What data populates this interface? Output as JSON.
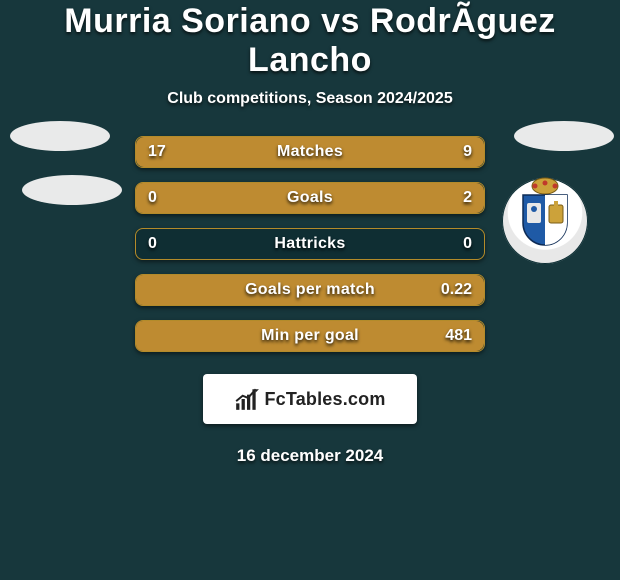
{
  "title": "Murria Soriano vs RodrÃ­guez Lancho",
  "subtitle": "Club competitions, Season 2024/2025",
  "date": "16 december 2024",
  "brand_text": "FcTables.com",
  "colors": {
    "background": "#17373c",
    "bar_track": "#0f2e33",
    "bar_border": "#b38b2a",
    "bar_fill": "#be8b31",
    "crest_blue": "#1f5aa6",
    "crest_gold": "#cca23a",
    "crest_red": "#c0392b"
  },
  "rows": [
    {
      "label": "Matches",
      "left": "17",
      "right": "9",
      "left_pct": 65,
      "right_pct": 35
    },
    {
      "label": "Goals",
      "left": "0",
      "right": "2",
      "left_pct": 0,
      "right_pct": 100
    },
    {
      "label": "Hattricks",
      "left": "0",
      "right": "0",
      "left_pct": 0,
      "right_pct": 0
    },
    {
      "label": "Goals per match",
      "left": "",
      "right": "0.22",
      "left_pct": 0,
      "right_pct": 100
    },
    {
      "label": "Min per goal",
      "left": "",
      "right": "481",
      "left_pct": 0,
      "right_pct": 100
    }
  ]
}
